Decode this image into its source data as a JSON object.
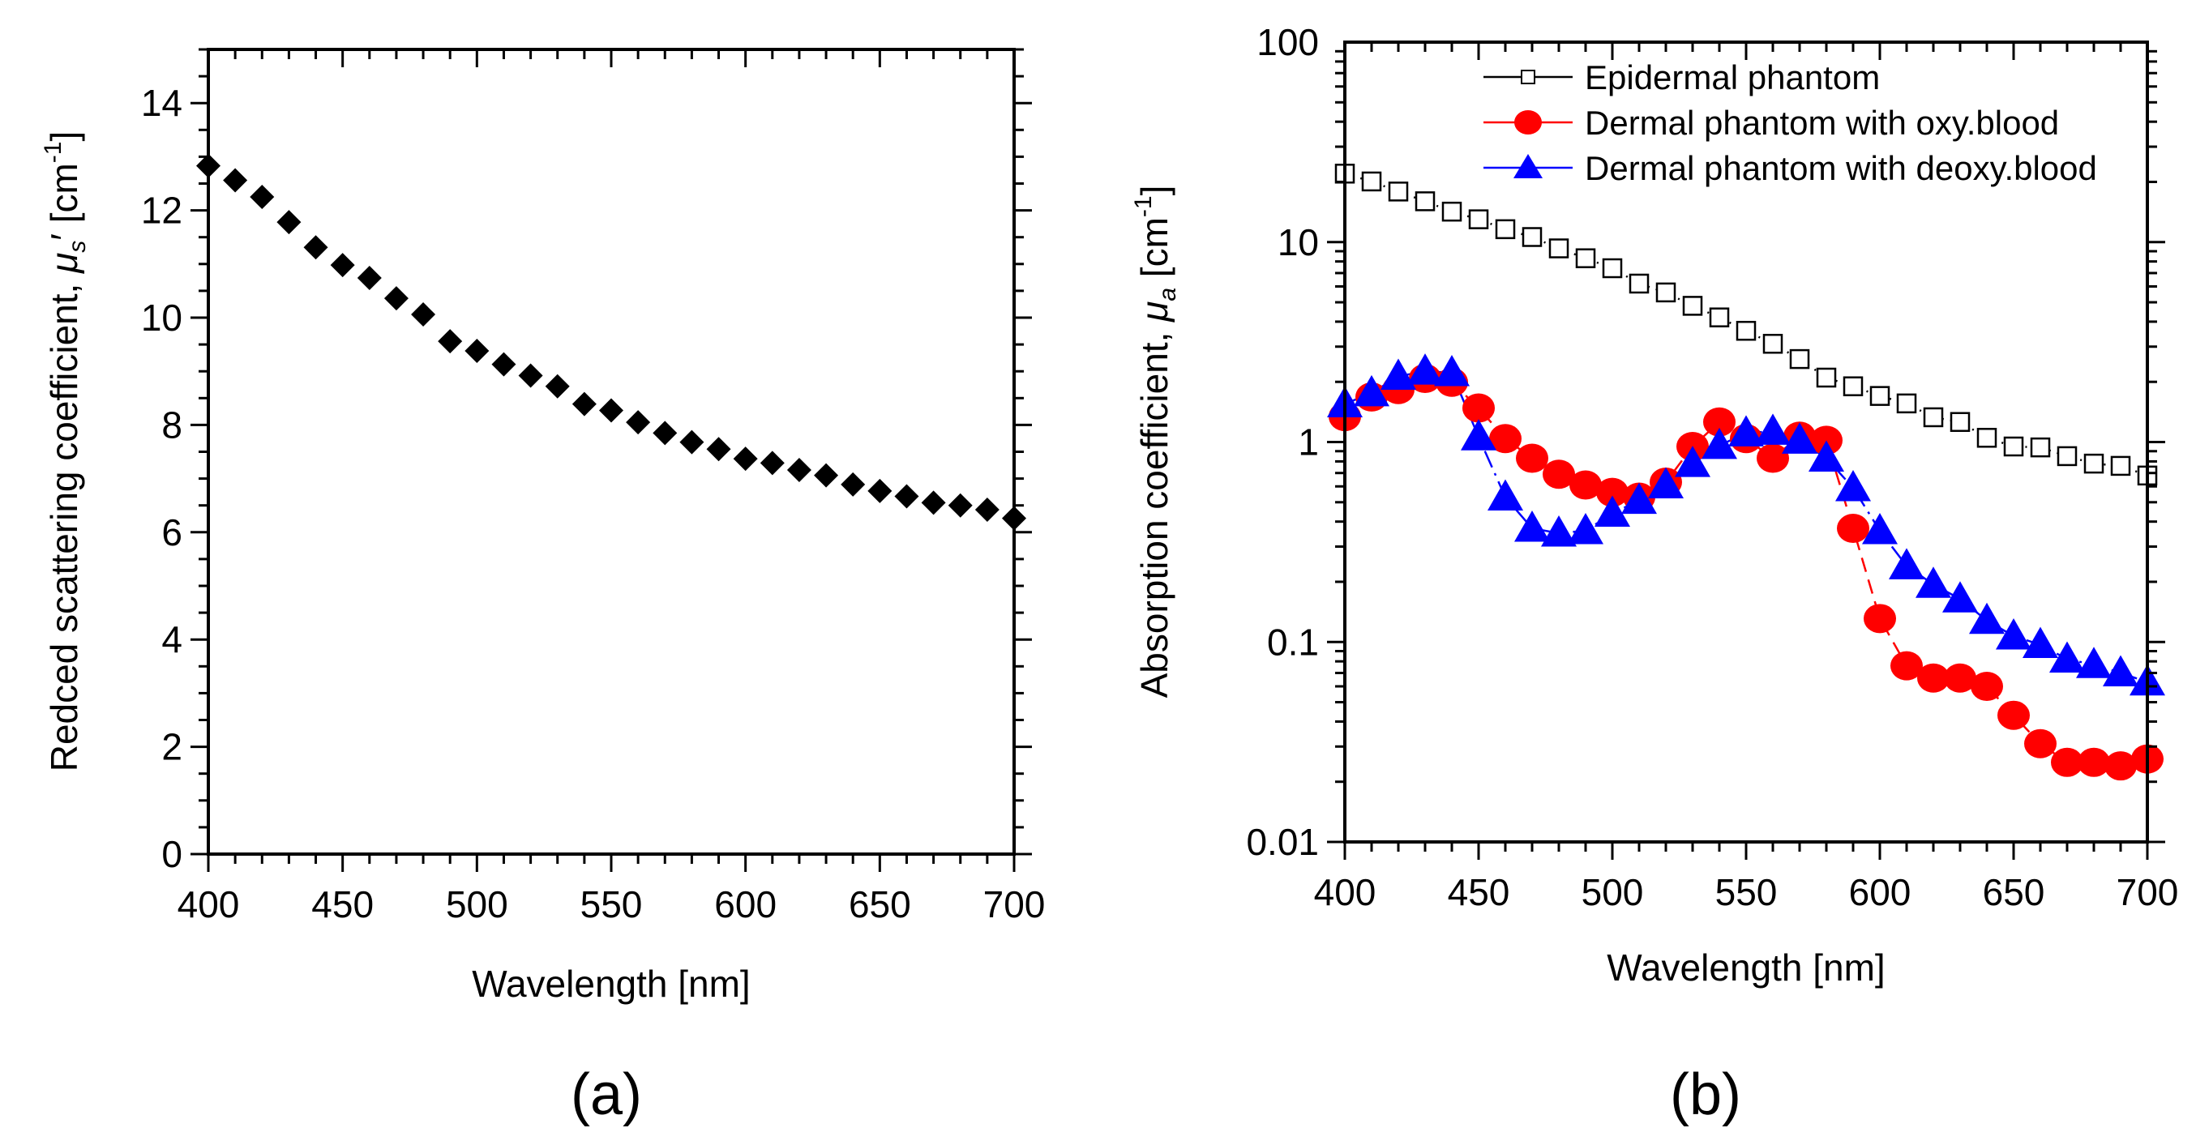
{
  "chart_data": [
    {
      "type": "scatter",
      "panel_label": "(a)",
      "title": "",
      "xlabel": "Wavelength [nm]",
      "ylabel_parts": [
        "Redced scattering coefficient, ",
        "μ",
        "s",
        "′ [cm",
        "-1",
        "]"
      ],
      "ylabel": "Redced scattering coefficient, μ_s′ [cm^-1]",
      "xlim": [
        400,
        700
      ],
      "ylim": [
        0,
        15
      ],
      "xticks": [
        400,
        450,
        500,
        550,
        600,
        650,
        700
      ],
      "xtick_labels": [
        "400",
        "450",
        "500",
        "550",
        "600",
        "650",
        "700"
      ],
      "yticks": [
        0,
        2,
        4,
        6,
        8,
        10,
        12,
        14
      ],
      "ytick_labels": [
        "0",
        "2",
        "4",
        "6",
        "8",
        "10",
        "12",
        "14"
      ],
      "grid": false,
      "series": [
        {
          "name": "Reduced scattering coefficient",
          "marker": "diamond",
          "color": "#000000",
          "x": [
            400,
            410,
            420,
            430,
            440,
            450,
            460,
            470,
            480,
            490,
            500,
            510,
            520,
            530,
            540,
            550,
            560,
            570,
            580,
            590,
            600,
            610,
            620,
            630,
            640,
            650,
            660,
            670,
            680,
            690,
            700
          ],
          "y": [
            12.83,
            12.56,
            12.25,
            11.78,
            11.31,
            10.98,
            10.74,
            10.36,
            10.06,
            9.56,
            9.38,
            9.13,
            8.92,
            8.72,
            8.39,
            8.27,
            8.05,
            7.85,
            7.68,
            7.55,
            7.37,
            7.29,
            7.16,
            7.06,
            6.89,
            6.77,
            6.67,
            6.55,
            6.5,
            6.42,
            6.26
          ]
        }
      ]
    },
    {
      "type": "line",
      "yscale": "log",
      "panel_label": "(b)",
      "title": "",
      "xlabel": "Wavelength [nm]",
      "ylabel_parts": [
        "Absorption coefficient, ",
        "μ",
        "a",
        " [cm",
        "-1",
        "]"
      ],
      "ylabel": "Absorption coefficient, μ_a [cm^-1]",
      "xlim": [
        400,
        700
      ],
      "ylim": [
        0.01,
        100
      ],
      "xticks": [
        400,
        450,
        500,
        550,
        600,
        650,
        700
      ],
      "xtick_labels": [
        "400",
        "450",
        "500",
        "550",
        "600",
        "650",
        "700"
      ],
      "yticks": [
        0.01,
        0.1,
        1,
        10,
        100
      ],
      "ytick_labels": [
        "0.01",
        "0.1",
        "1",
        "10",
        "100"
      ],
      "grid": false,
      "legend_position": "top-right",
      "series": [
        {
          "name": "Epidermal phantom",
          "marker": "open-square",
          "color": "#000000",
          "line_style": "dotted",
          "x": [
            400,
            410,
            420,
            430,
            440,
            450,
            460,
            470,
            480,
            490,
            500,
            510,
            520,
            530,
            540,
            550,
            560,
            570,
            580,
            590,
            600,
            610,
            620,
            630,
            640,
            650,
            660,
            670,
            680,
            690,
            700
          ],
          "y": [
            22.0,
            20.1,
            17.9,
            16.0,
            14.2,
            13.0,
            11.6,
            10.6,
            9.3,
            8.3,
            7.4,
            6.2,
            5.6,
            4.8,
            4.2,
            3.6,
            3.1,
            2.6,
            2.1,
            1.9,
            1.7,
            1.56,
            1.33,
            1.26,
            1.05,
            0.95,
            0.94,
            0.85,
            0.78,
            0.76,
            0.68
          ]
        },
        {
          "name": "Dermal phantom with oxy.blood",
          "marker": "filled-circle",
          "color": "#ff0000",
          "line_style": "dashed",
          "x": [
            400,
            410,
            420,
            430,
            440,
            450,
            460,
            470,
            480,
            490,
            500,
            510,
            520,
            530,
            540,
            550,
            560,
            570,
            580,
            590,
            600,
            610,
            620,
            630,
            640,
            650,
            660,
            670,
            680,
            690,
            700
          ],
          "y": [
            1.34,
            1.68,
            1.83,
            2.08,
            1.99,
            1.48,
            1.04,
            0.83,
            0.69,
            0.61,
            0.56,
            0.53,
            0.63,
            0.95,
            1.26,
            1.04,
            0.83,
            1.07,
            1.02,
            0.37,
            0.131,
            0.076,
            0.066,
            0.066,
            0.06,
            0.043,
            0.031,
            0.025,
            0.025,
            0.024,
            0.026
          ]
        },
        {
          "name": "Dermal phantom with deoxy.blood",
          "marker": "filled-triangle",
          "color": "#0000ff",
          "line_style": "dash-dot",
          "x": [
            400,
            410,
            420,
            430,
            440,
            450,
            460,
            470,
            480,
            490,
            500,
            510,
            520,
            530,
            540,
            550,
            560,
            570,
            580,
            590,
            600,
            610,
            620,
            630,
            640,
            650,
            660,
            670,
            680,
            690,
            700
          ],
          "y": [
            1.55,
            1.76,
            2.13,
            2.26,
            2.22,
            1.06,
            0.53,
            0.37,
            0.35,
            0.36,
            0.44,
            0.51,
            0.61,
            0.78,
            0.96,
            1.11,
            1.13,
            1.02,
            0.83,
            0.59,
            0.36,
            0.24,
            0.194,
            0.164,
            0.128,
            0.107,
            0.097,
            0.082,
            0.077,
            0.07,
            0.063
          ]
        }
      ]
    }
  ]
}
